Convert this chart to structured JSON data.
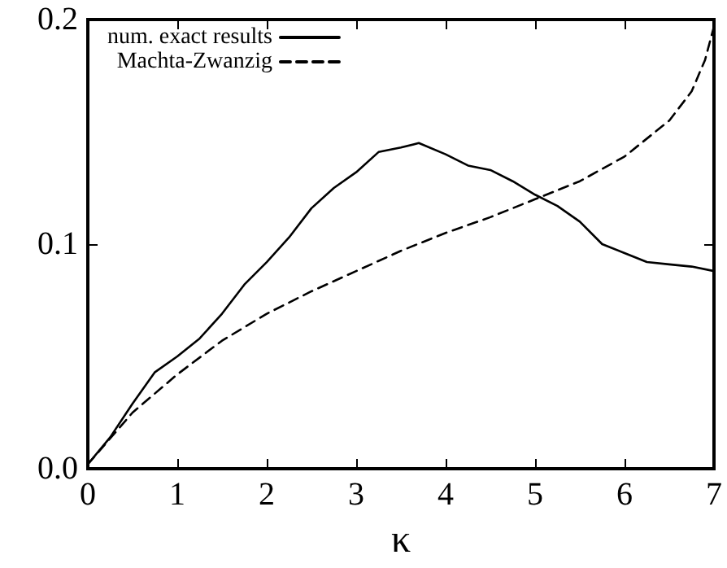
{
  "chart_data": {
    "type": "line",
    "xlabel": "κ",
    "xlim": [
      0,
      7
    ],
    "xticks": [
      0,
      1,
      2,
      3,
      4,
      5,
      6,
      7
    ],
    "ylim": [
      0,
      0.2
    ],
    "yticks": [
      "0.0",
      0.1,
      0.2
    ],
    "grid": false,
    "legend": "top left",
    "marker": "none",
    "series": [
      {
        "name": "num. exact results",
        "color": "#000000",
        "line_style": "solid",
        "x": [
          0,
          0.25,
          0.5,
          0.75,
          1,
          1.25,
          1.5,
          1.75,
          2,
          2.25,
          2.5,
          2.75,
          3,
          3.25,
          3.5,
          3.7,
          4,
          4.25,
          4.5,
          4.75,
          5,
          5.25,
          5.5,
          5.75,
          6,
          6.25,
          6.5,
          6.75,
          7
        ],
        "values": [
          0.002,
          0.014,
          0.029,
          0.043,
          0.05,
          0.058,
          0.069,
          0.082,
          0.092,
          0.103,
          0.116,
          0.125,
          0.132,
          0.141,
          0.143,
          0.145,
          0.14,
          0.135,
          0.133,
          0.128,
          0.122,
          0.117,
          0.11,
          0.1,
          0.096,
          0.092,
          0.091,
          0.09,
          0.088
        ]
      },
      {
        "name": "Machta-Zwanzig",
        "color": "#000000",
        "line_style": "dashed",
        "x": [
          0,
          0.5,
          1,
          1.5,
          2,
          2.5,
          3,
          3.5,
          4,
          4.5,
          5,
          5.5,
          6,
          6.5,
          6.75,
          6.9,
          7
        ],
        "values": [
          0.002,
          0.025,
          0.042,
          0.057,
          0.069,
          0.079,
          0.088,
          0.097,
          0.105,
          0.112,
          0.12,
          0.128,
          0.139,
          0.155,
          0.168,
          0.182,
          0.197
        ]
      }
    ]
  }
}
